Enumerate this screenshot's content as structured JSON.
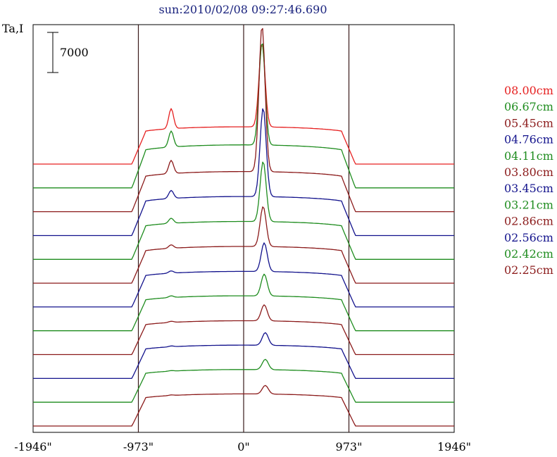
{
  "chart_data": {
    "type": "line",
    "title": "sun:2010/02/08 09:27:46.690",
    "ylabel": "Ta,I",
    "scale_bar": {
      "label": "7000",
      "value": 7000
    },
    "x_ticks": [
      {
        "value": -1946,
        "label": "-1946\""
      },
      {
        "value": -973,
        "label": "-973\""
      },
      {
        "value": 0,
        "label": "0\""
      },
      {
        "value": 973,
        "label": "973\""
      },
      {
        "value": 1946,
        "label": "1946\""
      }
    ],
    "xlim": [
      -1946,
      1946
    ],
    "vertical_lines": [
      -973,
      0,
      973
    ],
    "grid": false,
    "legend_placement": "right",
    "series": [
      {
        "name": "08.00cm",
        "color": "#e62020",
        "baseline": 0,
        "disk_level": 6500,
        "peak_x": 170,
        "peak_height": 14500,
        "spot_x": -670,
        "spot_height": 3500
      },
      {
        "name": "06.67cm",
        "color": "#1e8c1e",
        "baseline": 0,
        "disk_level": 7500,
        "peak_x": 170,
        "peak_height": 18000,
        "spot_x": -670,
        "spot_height": 2800
      },
      {
        "name": "05.45cm",
        "color": "#8b1a1a",
        "baseline": 0,
        "disk_level": 7000,
        "peak_x": 170,
        "peak_height": 25500,
        "spot_x": -670,
        "spot_height": 2300
      },
      {
        "name": "04.76cm",
        "color": "#12128c",
        "baseline": 0,
        "disk_level": 6800,
        "peak_x": 180,
        "peak_height": 15500,
        "spot_x": -670,
        "spot_height": 1400
      },
      {
        "name": "04.11cm",
        "color": "#1e8c1e",
        "baseline": 0,
        "disk_level": 6600,
        "peak_x": 180,
        "peak_height": 10500,
        "spot_x": -670,
        "spot_height": 900
      },
      {
        "name": "03.80cm",
        "color": "#8b1a1a",
        "baseline": 0,
        "disk_level": 6400,
        "peak_x": 180,
        "peak_height": 7000,
        "spot_x": -670,
        "spot_height": 600
      },
      {
        "name": "03.45cm",
        "color": "#12128c",
        "baseline": 0,
        "disk_level": 6200,
        "peak_x": 190,
        "peak_height": 5000,
        "spot_x": -670,
        "spot_height": 400
      },
      {
        "name": "03.21cm",
        "color": "#1e8c1e",
        "baseline": 0,
        "disk_level": 6100,
        "peak_x": 190,
        "peak_height": 3800,
        "spot_x": -670,
        "spot_height": 300
      },
      {
        "name": "02.86cm",
        "color": "#8b1a1a",
        "baseline": 0,
        "disk_level": 5900,
        "peak_x": 190,
        "peak_height": 2800,
        "spot_x": -670,
        "spot_height": 200
      },
      {
        "name": "02.56cm",
        "color": "#12128c",
        "baseline": 0,
        "disk_level": 5800,
        "peak_x": 200,
        "peak_height": 2200,
        "spot_x": -670,
        "spot_height": 150
      },
      {
        "name": "02.42cm",
        "color": "#1e8c1e",
        "baseline": 0,
        "disk_level": 5700,
        "peak_x": 200,
        "peak_height": 1800,
        "spot_x": -670,
        "spot_height": 100
      },
      {
        "name": "02.25cm",
        "color": "#8b1a1a",
        "baseline": 0,
        "disk_level": 5600,
        "peak_x": 200,
        "peak_height": 1500,
        "spot_x": -670,
        "spot_height": 100
      }
    ]
  }
}
